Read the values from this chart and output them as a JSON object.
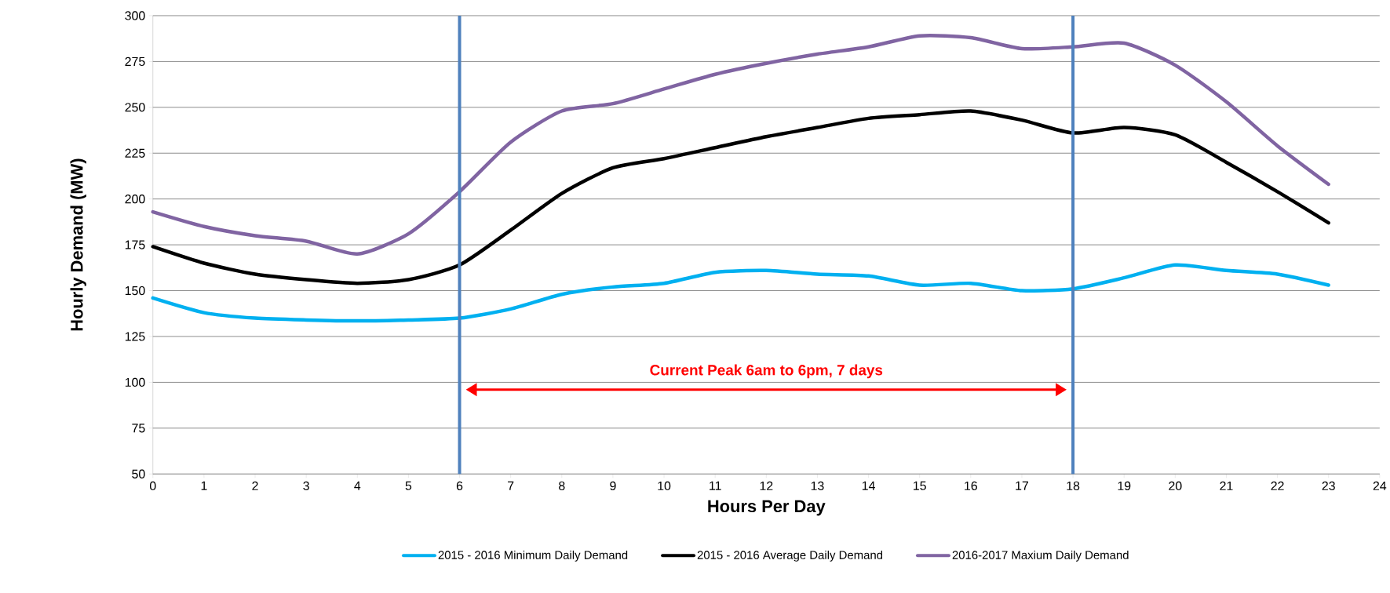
{
  "chart_data": {
    "type": "line",
    "xlabel": "Hours Per Day",
    "ylabel": "Hourly Demand (MW)",
    "x": [
      0,
      1,
      2,
      3,
      4,
      5,
      6,
      7,
      8,
      9,
      10,
      11,
      12,
      13,
      14,
      15,
      16,
      17,
      18,
      19,
      20,
      21,
      22,
      23
    ],
    "series": [
      {
        "name": "2015 - 2016 Minimum Daily Demand",
        "color": "#00b0f0",
        "values": [
          146,
          138,
          135,
          134,
          133.5,
          134,
          135,
          140,
          148,
          152,
          154,
          160,
          161,
          159,
          158,
          153,
          154,
          150,
          151,
          157,
          164,
          161,
          159,
          153
        ]
      },
      {
        "name": "2015 - 2016 Average Daily Demand",
        "color": "#000000",
        "values": [
          174,
          165,
          159,
          156,
          154,
          156,
          164,
          183,
          203,
          217,
          222,
          228,
          234,
          239,
          244,
          246,
          248,
          243,
          236,
          239,
          235,
          220,
          204,
          187
        ]
      },
      {
        "name": "2016-2017 Maxium Daily Demand",
        "color": "#8064a2",
        "values": [
          193,
          185,
          180,
          177,
          170,
          181,
          204,
          231,
          248,
          252,
          260,
          268,
          274,
          279,
          283,
          289,
          288,
          282,
          283,
          285,
          273,
          253,
          229,
          208
        ]
      }
    ],
    "xlim": [
      0,
      24
    ],
    "xticks": [
      0,
      1,
      2,
      3,
      4,
      5,
      6,
      7,
      8,
      9,
      10,
      11,
      12,
      13,
      14,
      15,
      16,
      17,
      18,
      19,
      20,
      21,
      22,
      23,
      24
    ],
    "ylim": [
      50,
      300
    ],
    "yticks": [
      50,
      75,
      100,
      125,
      150,
      175,
      200,
      225,
      250,
      275,
      300
    ],
    "grid": "y",
    "legend": "bottom",
    "marker": "none",
    "line_style": "solid",
    "ref_lines": [
      {
        "axis": "x",
        "value": 6,
        "color": "#4f81bd"
      },
      {
        "axis": "x",
        "value": 18,
        "color": "#4f81bd"
      }
    ],
    "annotations": [
      "Current Peak 6am to 6pm, 7 days"
    ]
  }
}
